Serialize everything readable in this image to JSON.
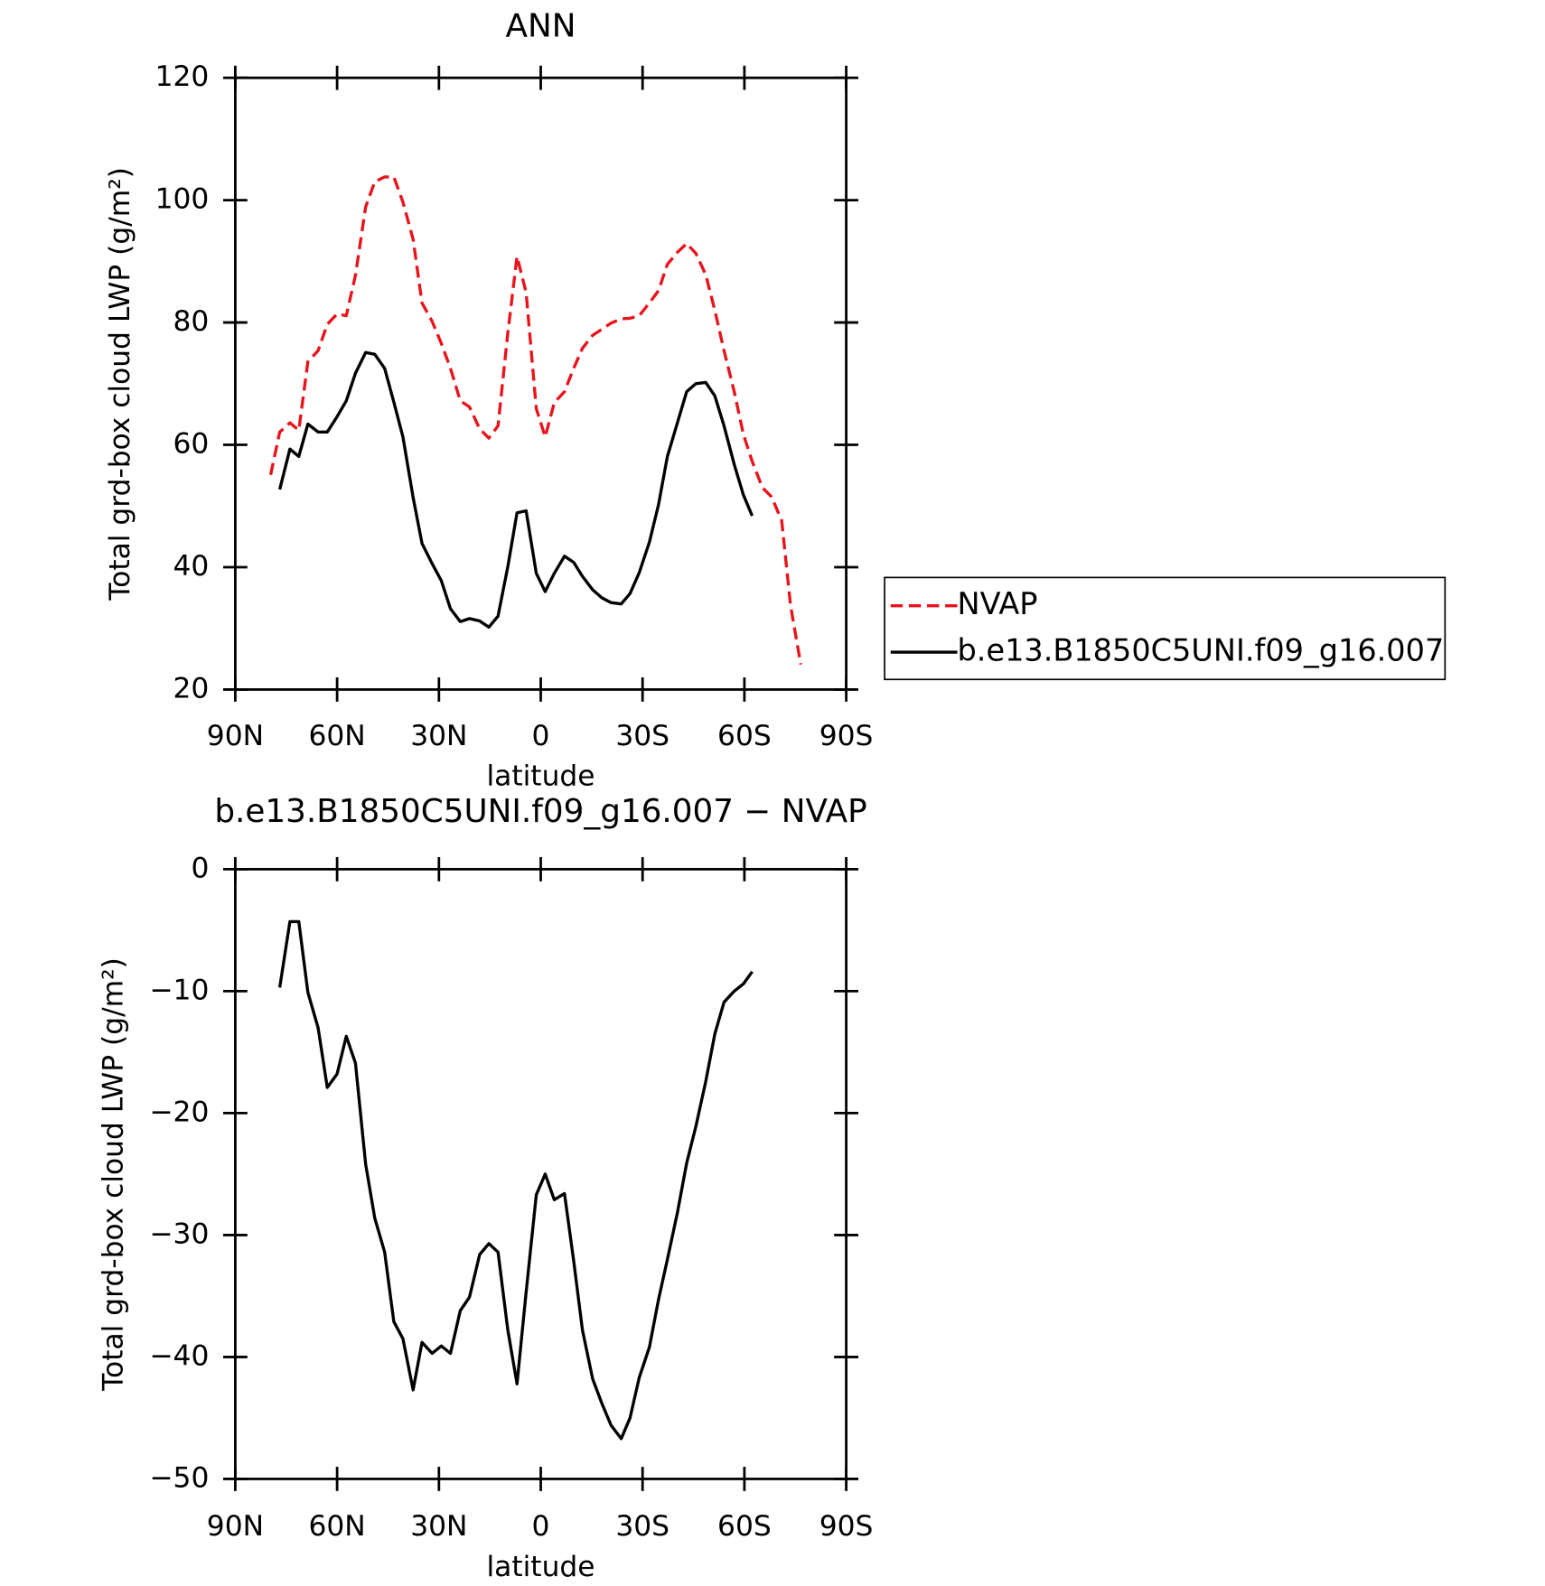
{
  "chart_data": [
    {
      "type": "line",
      "title": "ANN",
      "ylabel": "Total grd-box cloud LWP (g/m²)",
      "xlabel": "latitude",
      "xlim": [
        90,
        -90
      ],
      "xticks": [
        {
          "value": 90,
          "label": "90N"
        },
        {
          "value": 60,
          "label": "60N"
        },
        {
          "value": 30,
          "label": "30N"
        },
        0,
        {
          "value": -30,
          "label": "30S"
        },
        {
          "value": -60,
          "label": "60S"
        },
        {
          "value": -90,
          "label": "90S"
        }
      ],
      "ylim": [
        20,
        120
      ],
      "yticks": [
        20,
        40,
        60,
        80,
        100,
        120
      ],
      "legend": "right",
      "x": [
        79.6,
        76.9,
        73.9,
        71.3,
        68.6,
        65.6,
        62.9,
        60.0,
        57.3,
        54.6,
        51.6,
        48.9,
        46.0,
        43.3,
        40.6,
        37.6,
        35.0,
        32.0,
        29.3,
        26.6,
        23.7,
        21.0,
        18.0,
        15.3,
        12.6,
        9.7,
        7.0,
        4.3,
        1.3,
        -1.3,
        -4.0,
        -7.0,
        -9.7,
        -12.3,
        -15.3,
        -18.0,
        -20.7,
        -23.7,
        -26.3,
        -29.0,
        -32.0,
        -34.7,
        -37.3,
        -40.3,
        -43.0,
        -45.7,
        -48.6,
        -51.3,
        -54.0,
        -57.0,
        -59.7,
        -62.3,
        -65.3,
        -68.0,
        -71.0,
        -73.6,
        -76.6
      ],
      "series": [
        {
          "name": "NVAP",
          "color": "#e8141c",
          "style": "dashed",
          "values": [
            55.1,
            62.1,
            63.6,
            62.4,
            73.6,
            75.4,
            79.7,
            81.4,
            81.1,
            87.7,
            98.9,
            103.0,
            103.8,
            103.8,
            99.7,
            93.6,
            83.2,
            80.2,
            76.6,
            72.5,
            67.2,
            66.2,
            62.6,
            61.1,
            63.1,
            78.3,
            90.8,
            84.9,
            65.9,
            61.3,
            66.9,
            68.7,
            72.5,
            75.8,
            77.9,
            78.9,
            79.9,
            80.6,
            80.7,
            81.1,
            83.2,
            85.2,
            89.5,
            91.5,
            92.9,
            91.3,
            87.8,
            82.0,
            75.4,
            68.7,
            61.7,
            57.3,
            53.0,
            51.5,
            47.6,
            33.7,
            24.1
          ]
        },
        {
          "name": "b.e13.B1850C5UNI.f09_g16.007",
          "color": "#000000",
          "style": "solid",
          "values": [
            null,
            52.7,
            59.3,
            58.1,
            63.4,
            62.1,
            62.1,
            64.6,
            67.2,
            71.7,
            75.1,
            74.8,
            72.5,
            67.0,
            61.3,
            51.4,
            43.9,
            40.6,
            37.8,
            33.2,
            31.1,
            31.6,
            31.2,
            30.2,
            32.0,
            40.1,
            48.9,
            49.2,
            39.0,
            36.0,
            39.0,
            41.8,
            40.8,
            38.5,
            36.3,
            35.0,
            34.2,
            34.0,
            35.7,
            39.1,
            44.1,
            50.2,
            58.1,
            63.7,
            68.7,
            70.0,
            70.2,
            68.0,
            63.1,
            56.8,
            51.8,
            48.4,
            null,
            null,
            null,
            null,
            null
          ]
        }
      ]
    },
    {
      "type": "line",
      "title": "b.e13.B1850C5UNI.f09_g16.007 − NVAP",
      "ylabel": "Total grd-box cloud LWP (g/m²)",
      "xlabel": "latitude",
      "xlim": [
        90,
        -90
      ],
      "xticks": [
        {
          "value": 90,
          "label": "90N"
        },
        {
          "value": 60,
          "label": "60N"
        },
        {
          "value": 30,
          "label": "30N"
        },
        0,
        {
          "value": -30,
          "label": "30S"
        },
        {
          "value": -60,
          "label": "60S"
        },
        {
          "value": -90,
          "label": "90S"
        }
      ],
      "ylim": [
        -50,
        0
      ],
      "yticks": [
        {
          "value": -50,
          "label": "−50"
        },
        {
          "value": -40,
          "label": "−40"
        },
        {
          "value": -30,
          "label": "−30"
        },
        {
          "value": -20,
          "label": "−20"
        },
        {
          "value": -10,
          "label": "−10"
        },
        0
      ],
      "x": [
        76.9,
        73.9,
        71.3,
        68.6,
        65.6,
        62.9,
        60.0,
        57.3,
        54.6,
        51.6,
        48.9,
        46.0,
        43.3,
        40.6,
        37.6,
        35.0,
        32.0,
        29.3,
        26.6,
        23.7,
        21.0,
        18.0,
        15.3,
        12.6,
        9.7,
        7.0,
        4.3,
        1.3,
        -1.3,
        -4.0,
        -7.0,
        -9.7,
        -12.3,
        -15.3,
        -18.0,
        -20.7,
        -23.7,
        -26.3,
        -29.0,
        -32.0,
        -34.7,
        -37.3,
        -40.3,
        -43.0,
        -45.7,
        -48.6,
        -51.3,
        -54.0,
        -57.0,
        -59.7,
        -62.3
      ],
      "series": [
        {
          "color": "#000000",
          "style": "solid",
          "values": [
            -9.7,
            -4.3,
            -4.3,
            -10.1,
            -13.0,
            -17.9,
            -16.8,
            -13.7,
            -15.9,
            -24.2,
            -28.6,
            -31.4,
            -37.1,
            -38.5,
            -42.7,
            -38.8,
            -39.7,
            -39.1,
            -39.7,
            -36.2,
            -35.1,
            -31.6,
            -30.7,
            -31.4,
            -37.8,
            -42.2,
            -34.7,
            -26.7,
            -25.0,
            -27.1,
            -26.6,
            -32.1,
            -37.8,
            -41.8,
            -43.8,
            -45.6,
            -46.7,
            -45.0,
            -41.7,
            -39.2,
            -35.3,
            -32.0,
            -28.1,
            -24.1,
            -21.1,
            -17.4,
            -13.5,
            -10.9,
            -10.0,
            -9.4,
            -8.4
          ]
        }
      ]
    }
  ]
}
